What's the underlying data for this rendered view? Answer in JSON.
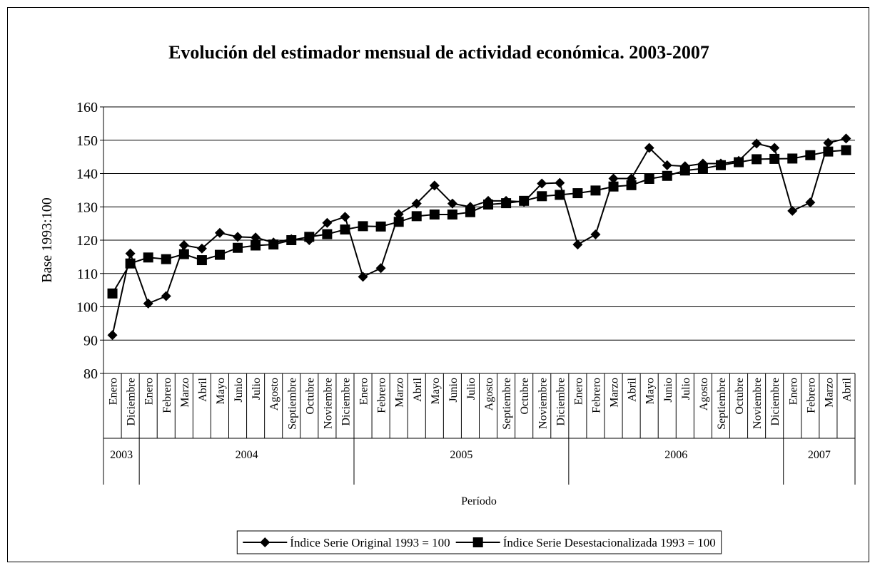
{
  "chart_data": {
    "type": "line",
    "title": "Evolución del estimador mensual de actividad económica. 2003-2007",
    "y_label": "Base 1993:100",
    "x_label": "Período",
    "categories": [
      "Enero",
      "Diciembre",
      "Enero",
      "Febrero",
      "Marzo",
      "Abril",
      "Mayo",
      "Junio",
      "Julio",
      "Agosto",
      "Septiembre",
      "Octubre",
      "Noviembre",
      "Diciembre",
      "Enero",
      "Febrero",
      "Marzo",
      "Abril",
      "Mayo",
      "Junio",
      "Julio",
      "Agosto",
      "Septiembre",
      "Octubre",
      "Noviembre",
      "Diciembre",
      "Enero",
      "Febrero",
      "Marzo",
      "Abril",
      "Mayo",
      "Junio",
      "Julio",
      "Agosto",
      "Septiembre",
      "Octubre",
      "Noviembre",
      "Diciembre",
      "Enero",
      "Febrero",
      "Marzo",
      "Abril"
    ],
    "category_groups": [
      "2003",
      null,
      "2004",
      null,
      null,
      null,
      null,
      null,
      null,
      null,
      null,
      null,
      null,
      null,
      "2005",
      null,
      null,
      null,
      null,
      null,
      null,
      null,
      null,
      null,
      null,
      null,
      "2006",
      null,
      null,
      null,
      null,
      null,
      null,
      null,
      null,
      null,
      null,
      null,
      "2007",
      null,
      null,
      null
    ],
    "series": [
      {
        "name": "Índice Serie Original 1993 = 100",
        "color": "#000000",
        "marker": "diamond",
        "values": [
          91.5,
          116,
          101,
          103.2,
          118.5,
          117.5,
          122.2,
          121,
          120.8,
          119.3,
          120.3,
          120,
          125.2,
          127,
          109,
          111.6,
          127.8,
          131,
          136.4,
          131,
          130,
          131.8,
          131.8,
          131.5,
          137,
          137.2,
          118.7,
          121.7,
          138.5,
          138.5,
          147.7,
          142.5,
          142.2,
          143,
          143,
          143.8,
          149,
          147.7,
          128.8,
          131.3,
          149.2,
          150.5
        ]
      },
      {
        "name": "Índice Serie Desestacionalizada 1993 = 100",
        "color": "#000000",
        "marker": "square",
        "values": [
          104,
          113,
          114.8,
          114.3,
          115.8,
          114,
          115.6,
          117.7,
          118.4,
          118.7,
          120,
          121,
          121.8,
          123.2,
          124.2,
          124.1,
          125.5,
          127.2,
          127.7,
          127.7,
          128.4,
          130.7,
          131.1,
          131.8,
          133.2,
          133.6,
          134.1,
          134.9,
          136.1,
          136.5,
          138.4,
          139.3,
          140.9,
          141.5,
          142.5,
          143.4,
          144.3,
          144.4,
          144.5,
          145.5,
          146.6,
          147
        ]
      }
    ],
    "ylim": [
      80,
      160
    ],
    "yticks": [
      80,
      90,
      100,
      110,
      120,
      130,
      140,
      150,
      160
    ],
    "grid": true,
    "legend": "bottom"
  }
}
